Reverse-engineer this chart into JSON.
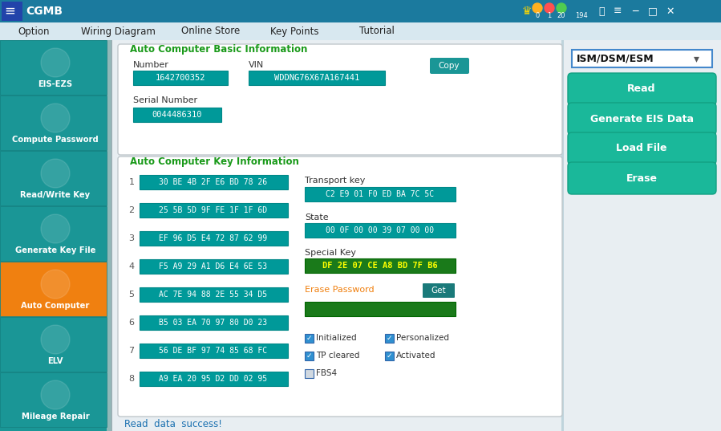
{
  "title": "CGMB",
  "bg_title": "#1b7a9e",
  "bg_main": "#bfd4dc",
  "bg_sidebar": "#1a9696",
  "bg_content": "#e8eef2",
  "sidebar_color": "#1a9696",
  "active_sidebar_color": "#f08010",
  "sidebar_divider": "#158080",
  "menu_bg": "#d8e8f0",
  "menu_items": [
    "Option",
    "Wiring Diagram",
    "Online Store",
    "Key Points",
    "Tutorial"
  ],
  "sidebar_items": [
    {
      "label": "EIS-EZS",
      "active": false
    },
    {
      "label": "Compute Password",
      "active": false
    },
    {
      "label": "Read/Write Key",
      "active": false
    },
    {
      "label": "Generate Key File",
      "active": false
    },
    {
      "label": "Auto Computer",
      "active": true
    },
    {
      "label": "ELV",
      "active": false
    },
    {
      "label": "Mileage Repair",
      "active": false
    }
  ],
  "dropdown_text": "ISM/DSM/ESM",
  "right_buttons": [
    "Read",
    "Generate EIS Data",
    "Load File",
    "Erase"
  ],
  "btn_color": "#1ab89a",
  "btn_border": "#12a082",
  "teal_field": "#009999",
  "green_field": "#1a7a1a",
  "dark_green_field": "#1a6010",
  "basic_info_title": "Auto Computer Basic Information",
  "key_info_title": "Auto Computer Key Information",
  "number_val": "1642700352",
  "vin_val": "WDDNG76X67A167441",
  "serial_val": "0044486310",
  "key_rows": [
    "30 BE 4B 2F E6 BD 78 26",
    "25 5B 5D 9F FE 1F 1F 6D",
    "EF 96 D5 E4 72 87 62 99",
    "F5 A9 29 A1 D6 E4 6E 53",
    "AC 7E 94 88 2E 55 34 D5",
    "B5 03 EA 70 97 80 D0 23",
    "56 DE BF 97 74 85 68 FC",
    "A9 EA 20 95 D2 DD 02 95"
  ],
  "transport_key": "C2 E9 01 F0 ED BA 7C 5C",
  "state_val": "00 0F 00 00 39 07 00 00",
  "special_key": "DF 2E 07 CE A8 BD 7F B6",
  "checkboxes": [
    {
      "label": "Initialized",
      "checked": true,
      "col": 0
    },
    {
      "label": "Personalized",
      "checked": true,
      "col": 1
    },
    {
      "label": "TP cleared",
      "checked": true,
      "col": 0
    },
    {
      "label": "Activated",
      "checked": true,
      "col": 1
    },
    {
      "label": "FBS4",
      "checked": false,
      "col": 0
    }
  ],
  "status_text": "Read  data  success!",
  "status_color": "#1a70b0",
  "copy_btn_color": "#1a9696",
  "get_btn_color": "#1a7a7a",
  "panel_title_color": "#1a9a1a",
  "panel_border": "#c0c8cc",
  "field_text_color": "#ffffff",
  "label_color": "#333333",
  "num_color": "#555555"
}
